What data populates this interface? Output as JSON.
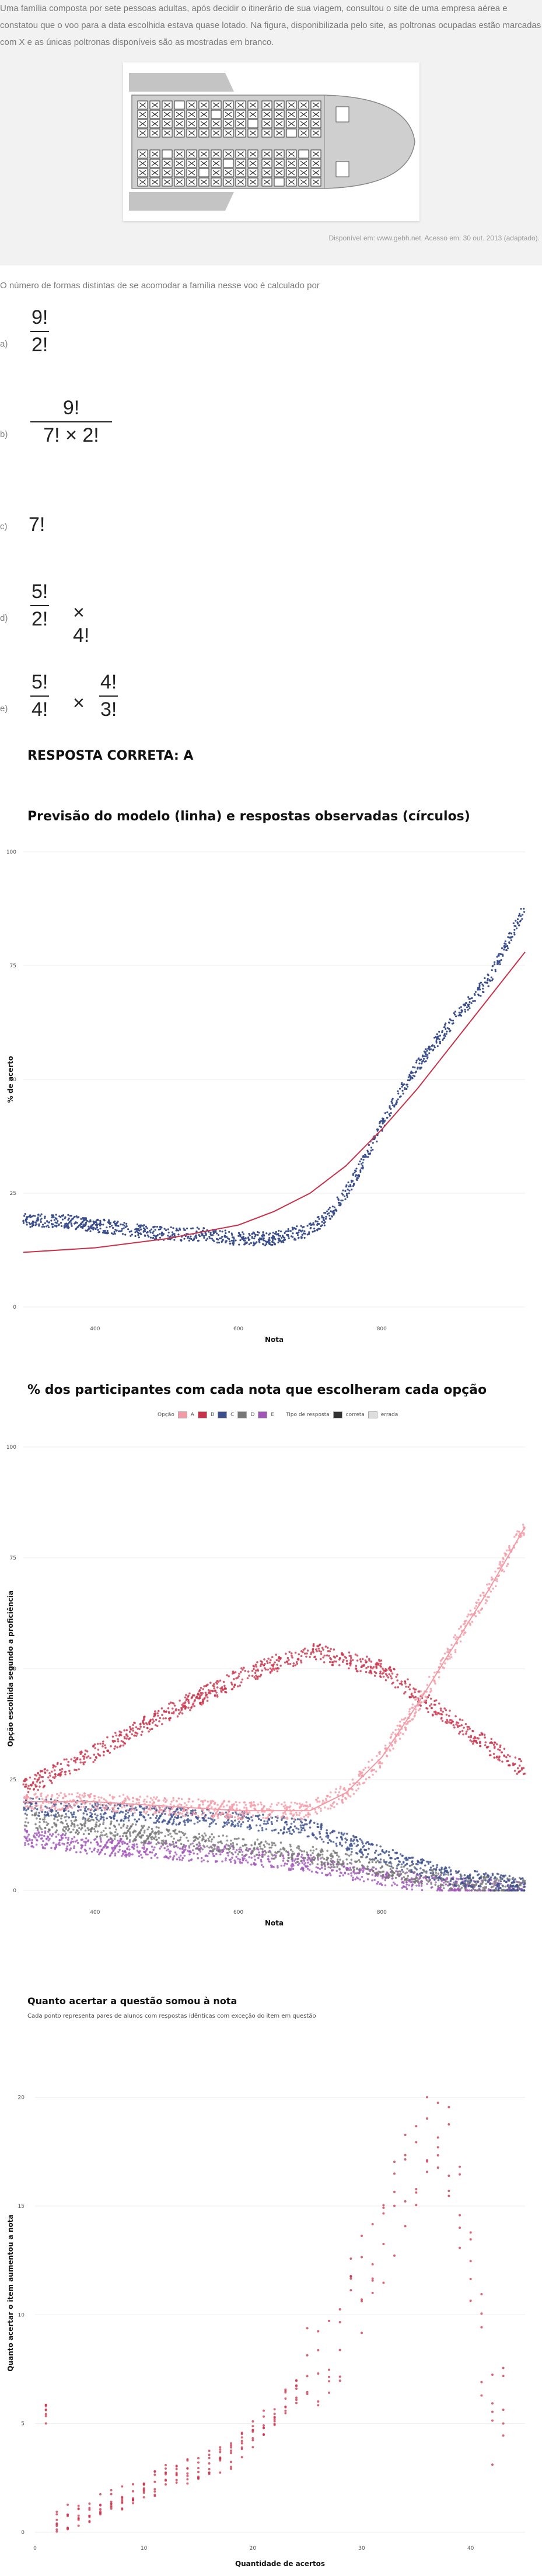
{
  "question": {
    "text": "Uma família composta por sete pessoas adultas, após decidir o itinerário de sua viagem, consultou o site de uma empresa aérea e constatou que o voo para a data escolhida estava quase lotado. Na figura, disponibilizada pelo site, as poltronas ocupadas estão marcadas com X e as únicas poltronas disponíveis são as mostradas em branco.",
    "source": "Disponível em: www.gebh.net. Acesso em: 30 out. 2013 (adaptado).",
    "prompt": "O número de formas distintas de se acomodar a família nesse voo é calculado por"
  },
  "options": [
    {
      "letter": "a)",
      "num": "9!",
      "den": "2!"
    },
    {
      "letter": "b)",
      "num": "9!",
      "den": "7! × 2!"
    },
    {
      "letter": "c)",
      "expr": "7!"
    },
    {
      "letter": "d)",
      "num": "5!",
      "den": "2!",
      "suffix": "× 4!"
    },
    {
      "letter": "e)",
      "num": "5!",
      "den": "4!",
      "mid": "×",
      "num2": "4!",
      "den2": "3!"
    }
  ],
  "answer": "RESPOSTA CORRETA: A",
  "colors": {
    "navy": "#3b4f8c",
    "red": "#c8324a",
    "pink": "#f29aa6",
    "gray": "#777777",
    "purple": "#a155b9",
    "grayline": "#e6e6e6"
  },
  "chart1": {
    "title": "Previsão do modelo (linha) e respostas observadas (círculos)",
    "xlabel": "Nota",
    "ylabel": "% de acerto",
    "xticks": [
      "400",
      "600",
      "800"
    ],
    "yticks": [
      "0",
      "25",
      "50",
      "75",
      "100"
    ]
  },
  "chart2": {
    "title": "% dos participantes com cada nota que escolheram cada opção",
    "xlabel": "Nota",
    "ylabel": "Opção escolhida segundo a proficiência",
    "xticks": [
      "400",
      "600",
      "800"
    ],
    "yticks": [
      "0",
      "25",
      "50",
      "75",
      "100"
    ],
    "legend_title": "Opção",
    "legend_items": [
      "A",
      "B",
      "C",
      "D",
      "E"
    ],
    "legend_type_title": "Tipo de resposta",
    "legend_type_items": [
      "correta",
      "errada"
    ]
  },
  "chart3": {
    "title": "Quanto acertar a questão somou à nota",
    "subtitle": "Cada ponto representa pares de alunos com respostas idênticas com exceção do item em questão",
    "xlabel": "Quantidade de acertos",
    "ylabel": "Quanto acertar o item aumentou a nota",
    "xticks": [
      "0",
      "10",
      "20",
      "30",
      "40"
    ],
    "yticks": [
      "0",
      "5",
      "10",
      "15",
      "20"
    ]
  },
  "chart_data": [
    {
      "type": "scatter",
      "title": "Previsão do modelo (linha) e respostas observadas (círculos)",
      "xlabel": "Nota",
      "ylabel": "% de acerto",
      "xlim": [
        300,
        1000
      ],
      "ylim": [
        0,
        100
      ],
      "series": [
        {
          "kind": "line",
          "x": [
            300,
            400,
            500,
            600,
            650,
            700,
            750,
            800,
            850,
            900,
            950,
            1000
          ],
          "y": [
            12,
            13,
            15,
            18,
            21,
            25,
            31,
            39,
            48,
            58,
            68,
            78
          ]
        },
        {
          "kind": "points",
          "x": [
            300,
            350,
            400,
            450,
            500,
            550,
            600,
            650,
            700,
            725,
            750,
            775,
            800,
            825,
            850,
            875,
            900,
            950,
            1000
          ],
          "y": [
            19,
            19,
            18,
            17,
            16,
            16,
            15,
            15,
            17,
            20,
            25,
            32,
            40,
            47,
            53,
            58,
            63,
            72,
            88
          ]
        }
      ]
    },
    {
      "type": "scatter",
      "title": "% dos participantes com cada nota que escolheram cada opção",
      "xlabel": "Nota",
      "ylabel": "Opção escolhida segundo a proficiência",
      "xlim": [
        300,
        1000
      ],
      "ylim": [
        0,
        100
      ],
      "series": [
        {
          "name": "A",
          "x": [
            300,
            400,
            500,
            600,
            700,
            750,
            800,
            850,
            900,
            950,
            1000
          ],
          "y": [
            20,
            20,
            19,
            18,
            18,
            22,
            30,
            42,
            55,
            68,
            82
          ]
        },
        {
          "name": "B",
          "x": [
            300,
            400,
            500,
            600,
            700,
            800,
            900,
            1000
          ],
          "y": [
            23,
            31,
            40,
            48,
            54,
            50,
            38,
            27
          ]
        },
        {
          "name": "C",
          "x": [
            300,
            400,
            500,
            600,
            700,
            800,
            900,
            1000
          ],
          "y": [
            19,
            18,
            17,
            16,
            14,
            8,
            3,
            1
          ]
        },
        {
          "name": "D",
          "x": [
            300,
            400,
            500,
            600,
            700,
            800,
            900,
            1000
          ],
          "y": [
            16,
            14,
            12,
            10,
            8,
            5,
            2,
            1
          ]
        },
        {
          "name": "E",
          "x": [
            300,
            400,
            500,
            600,
            700,
            800,
            900,
            1000
          ],
          "y": [
            12,
            10,
            9,
            8,
            6,
            3,
            1,
            0
          ]
        }
      ]
    },
    {
      "type": "scatter",
      "title": "Quanto acertar a questão somou à nota",
      "xlabel": "Quantidade de acertos",
      "ylabel": "Quanto acertar o item aumentou a nota",
      "xlim": [
        0,
        45
      ],
      "ylim": [
        0,
        22
      ],
      "series": [
        {
          "x": [
            2,
            5,
            8,
            10,
            12,
            15,
            18,
            20,
            22,
            25,
            28,
            30,
            32,
            34,
            36,
            38,
            40,
            42
          ],
          "y": [
            0.5,
            1.0,
            1.6,
            2.0,
            2.5,
            3.0,
            3.5,
            4.5,
            5.5,
            7.0,
            9.0,
            11.5,
            13.5,
            16.0,
            18.0,
            17.5,
            12.0,
            5.5
          ]
        }
      ]
    }
  ]
}
